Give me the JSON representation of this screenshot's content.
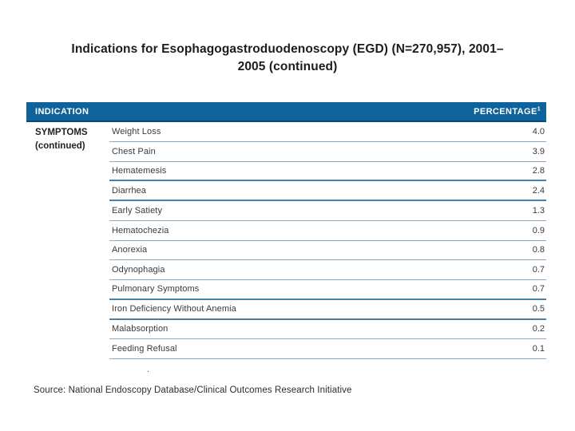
{
  "slide": {
    "title": {
      "line1": "Indications for Esophagogastroduodenoscopy (EGD) (N=270,957), 2001–",
      "line2": "2005 (continued)"
    },
    "footnote_mark": ".",
    "source": "Source: National Endoscopy Database/Clinical Outcomes Research Initiative"
  },
  "table": {
    "header": {
      "indication": "INDICATION",
      "percentage": "PERCENTAGE",
      "percentage_superscript": "1"
    },
    "row_group": {
      "line1": "SYMPTOMS",
      "line2": "(continued)"
    },
    "rows": [
      {
        "label": "Weight Loss",
        "value": "4.0"
      },
      {
        "label": "Chest Pain",
        "value": "3.9"
      },
      {
        "label": "Hematemesis",
        "value": "2.8"
      },
      {
        "label": "Diarrhea",
        "value": "2.4"
      },
      {
        "label": "Early Satiety",
        "value": "1.3"
      },
      {
        "label": "Hematochezia",
        "value": "0.9"
      },
      {
        "label": "Anorexia",
        "value": "0.8"
      },
      {
        "label": "Odynophagia",
        "value": "0.7"
      },
      {
        "label": "Pulmonary Symptoms",
        "value": "0.7"
      },
      {
        "label": "Iron Deficiency Without Anemia",
        "value": "0.5"
      },
      {
        "label": "Malabsorption",
        "value": "0.2"
      },
      {
        "label": "Feeding Refusal",
        "value": "0.1"
      }
    ]
  },
  "colors": {
    "header_bg": "#0f639c",
    "header_border": "#0b4a77",
    "row_line": "#8aabc7",
    "row_line_strong": "#4680ad",
    "title_text": "#1c1c1c"
  }
}
